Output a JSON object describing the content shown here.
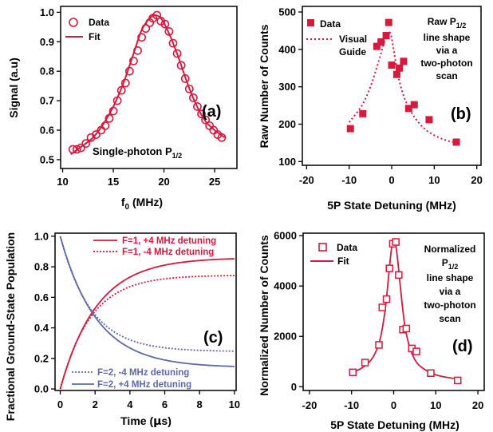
{
  "colors": {
    "red": "#d7193c",
    "blue": "#5f69a8",
    "axis": "#000000"
  },
  "chart_data": [
    {
      "id": "a",
      "type": "scatter",
      "xlabel": "f",
      "xlabel_sub": "0",
      "xlabel_tail": " (MHz)",
      "ylabel": "Signal (a.u)",
      "xlim": [
        9.8,
        27.2
      ],
      "ylim": [
        0.47,
        1.02
      ],
      "xticks": [
        10,
        15,
        20,
        25
      ],
      "yticks": [
        0.5,
        0.6,
        0.7,
        0.8,
        0.9,
        1.0
      ],
      "ytick_labels": [
        "0.5",
        "0.6",
        "0.7",
        "0.8",
        "0.9",
        "1.0"
      ],
      "tag": "(a)",
      "annotation": {
        "main": "Single-photon P",
        "sub": "1/2"
      },
      "legend": {
        "data": "Data",
        "fit": "Fit"
      },
      "series": [
        {
          "name": "Data",
          "marker": "open-circle",
          "x": [
            11.0,
            11.4,
            11.8,
            12.3,
            12.8,
            13.3,
            13.8,
            14.2,
            14.6,
            15.0,
            15.4,
            15.8,
            16.2,
            16.6,
            17.0,
            17.4,
            17.8,
            18.2,
            18.6,
            18.9,
            19.3,
            19.7,
            20.1,
            20.5,
            20.9,
            21.3,
            21.7,
            22.1,
            22.5,
            22.9,
            23.3,
            23.7,
            24.1,
            24.5,
            24.9,
            25.3,
            25.7
          ],
          "y": [
            0.535,
            0.535,
            0.54,
            0.555,
            0.575,
            0.585,
            0.6,
            0.615,
            0.64,
            0.665,
            0.7,
            0.735,
            0.76,
            0.8,
            0.835,
            0.87,
            0.915,
            0.945,
            0.965,
            0.98,
            0.99,
            0.97,
            0.96,
            0.935,
            0.895,
            0.86,
            0.82,
            0.775,
            0.74,
            0.71,
            0.68,
            0.655,
            0.635,
            0.615,
            0.6,
            0.585,
            0.575
          ]
        },
        {
          "name": "Fit",
          "type": "line",
          "x": [
            10.8,
            12.0,
            13.0,
            14.0,
            15.0,
            16.0,
            17.0,
            17.8,
            18.6,
            19.2,
            19.8,
            20.6,
            21.4,
            22.2,
            23.0,
            24.0,
            25.0,
            26.0
          ],
          "y": [
            0.518,
            0.548,
            0.575,
            0.62,
            0.68,
            0.76,
            0.86,
            0.94,
            0.98,
            0.99,
            0.975,
            0.92,
            0.85,
            0.77,
            0.7,
            0.635,
            0.6,
            0.575
          ]
        }
      ]
    },
    {
      "id": "b",
      "type": "scatter",
      "xlabel": "5P State Detuning (MHz)",
      "ylabel": "Raw Number of Counts",
      "xlim": [
        -21,
        21
      ],
      "ylim": [
        90,
        515
      ],
      "xticks": [
        -20,
        -10,
        0,
        10,
        20
      ],
      "yticks": [
        100,
        200,
        300,
        400,
        500
      ],
      "tag": "(b)",
      "annotation": {
        "lines": [
          "Raw P",
          "line shape",
          "via a",
          "two-photon",
          "scan"
        ],
        "sub": "1/2"
      },
      "legend": {
        "data": "Data",
        "guide_1": "Visual",
        "guide_2": "Guide"
      },
      "series": [
        {
          "name": "Data",
          "marker": "filled-square",
          "x": [
            -9.7,
            -6.8,
            -3.5,
            -2.5,
            -1.3,
            -0.7,
            0.0,
            1.2,
            1.8,
            2.8,
            4.0,
            5.3,
            8.8,
            15.2
          ],
          "y": [
            188,
            228,
            408,
            420,
            437,
            472,
            358,
            333,
            350,
            368,
            242,
            252,
            212,
            152
          ]
        },
        {
          "name": "Visual Guide",
          "type": "dotted-line",
          "x": [
            -10,
            -7,
            -5,
            -3,
            -2,
            -1,
            -0.4,
            0,
            0.6,
            1.5,
            3,
            5,
            8,
            12,
            16
          ],
          "y": [
            205,
            250,
            300,
            370,
            410,
            440,
            445,
            430,
            390,
            330,
            270,
            225,
            185,
            160,
            148
          ]
        }
      ]
    },
    {
      "id": "c",
      "type": "line",
      "xlabel": "Time (",
      "xlabel_mu": "μ",
      "xlabel_tail": "s)",
      "ylabel": "Fractional Ground-State Population",
      "xlim": [
        -0.3,
        10.1
      ],
      "ylim": [
        -0.01,
        1.02
      ],
      "xticks": [
        0,
        2,
        4,
        6,
        8,
        10
      ],
      "yticks": [
        0.0,
        0.2,
        0.4,
        0.6,
        0.8,
        1.0
      ],
      "ytick_labels": [
        "0.0",
        "0.2",
        "0.4",
        "0.6",
        "0.8",
        "1.0"
      ],
      "tag": "(c)",
      "series": [
        {
          "name": "F=1, +4 MHz detuning",
          "style": "solid",
          "color": "red",
          "model": {
            "a": 0.86,
            "tau": 2.1
          }
        },
        {
          "name": "F=1,  -4 MHz detuning",
          "style": "dotted",
          "color": "red",
          "model": {
            "a": 0.745,
            "tau": 1.75
          }
        },
        {
          "name": "F=2,  -4 MHz detuning",
          "style": "dotted",
          "color": "blue",
          "model": {
            "a": 0.755,
            "tau": 1.75
          }
        },
        {
          "name": "F=2, +4 MHz detuning",
          "style": "solid",
          "color": "blue",
          "model": {
            "a": 0.86,
            "tau": 2.1
          }
        }
      ]
    },
    {
      "id": "d",
      "type": "scatter",
      "xlabel": "5P State Detuning (MHz)",
      "ylabel": "Normalized Number of Counts",
      "xlim": [
        -21.5,
        21.5
      ],
      "ylim": [
        -150,
        6100
      ],
      "xticks": [
        -20,
        -10,
        0,
        10,
        20
      ],
      "yticks": [
        0,
        2000,
        4000,
        6000
      ],
      "tag": "(d)",
      "annotation": {
        "lines": [
          "Normalized",
          "P",
          "line shape",
          "via a",
          "two-photon",
          "scan"
        ],
        "sub": "1/2"
      },
      "legend": {
        "data": "Data",
        "fit": "Fit"
      },
      "series": [
        {
          "name": "Data",
          "marker": "open-square",
          "x": [
            -9.7,
            -6.8,
            -3.5,
            -2.7,
            -1.7,
            -1.0,
            -0.2,
            0.5,
            1.2,
            2.2,
            3.0,
            4.3,
            5.4,
            8.8,
            15.2
          ],
          "y": [
            570,
            960,
            1660,
            3150,
            3480,
            4700,
            5680,
            5750,
            4440,
            2270,
            2310,
            1520,
            1400,
            540,
            250
          ]
        },
        {
          "name": "Fit",
          "type": "line",
          "x": [
            -10,
            -8,
            -6,
            -5,
            -4,
            -3,
            -2,
            -1.5,
            -1,
            -0.5,
            0,
            0.5,
            1,
            1.5,
            2,
            2.5,
            3,
            4,
            5,
            6,
            8,
            10,
            13,
            16
          ],
          "y": [
            560,
            700,
            950,
            1150,
            1480,
            2050,
            3080,
            3870,
            4750,
            5500,
            5820,
            5620,
            4950,
            4120,
            3300,
            2600,
            2100,
            1460,
            1080,
            860,
            620,
            470,
            360,
            290
          ]
        }
      ]
    }
  ]
}
